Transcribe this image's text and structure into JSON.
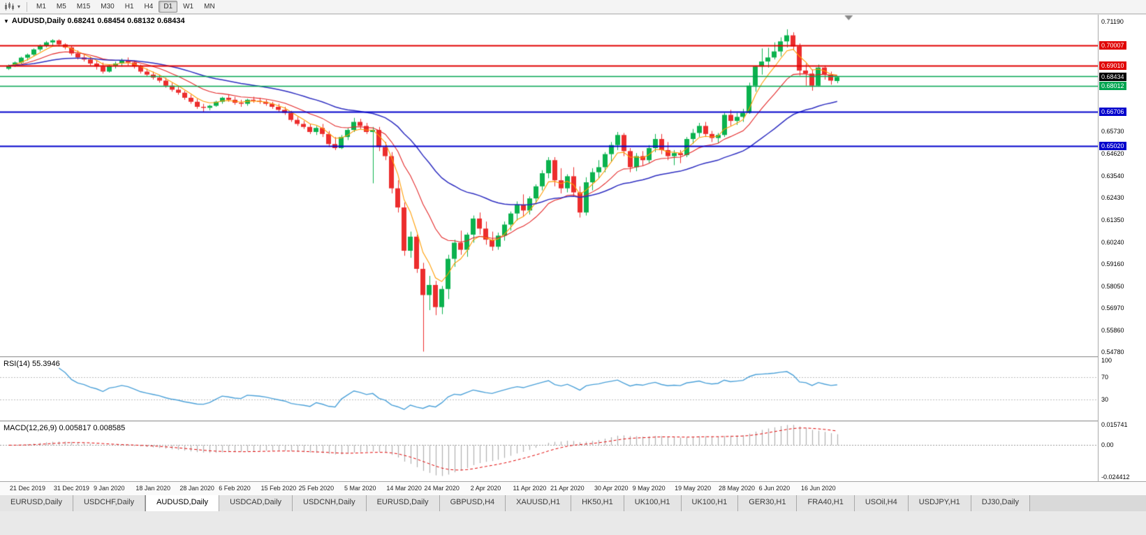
{
  "colors": {
    "up_candle": "#0bb24e",
    "down_candle": "#ec2d2d",
    "ma_fast": "#ff9d00",
    "ma_mid": "#e32525",
    "ma_slow": "#2d2dc0",
    "rsi_line": "#4aa0d8",
    "macd_histogram": "#b0b0b0",
    "macd_signal": "#e00000",
    "bid_badge_bg": "#000000"
  },
  "toolbar": {
    "timeframes": [
      "M1",
      "M5",
      "M15",
      "M30",
      "H1",
      "H4",
      "D1",
      "W1",
      "MN"
    ],
    "active_timeframe": "D1",
    "caret_icon": "▾"
  },
  "chart": {
    "title": "AUDUSD,Daily 0.68241 0.68454 0.68132 0.68434",
    "symbol_caret": "▼"
  },
  "price_axis": {
    "plain_labels": [
      "0.71190",
      "0.65730",
      "0.64620",
      "0.63540",
      "0.62430",
      "0.61350",
      "0.60240",
      "0.59160",
      "0.58050",
      "0.56970",
      "0.55860",
      "0.54780"
    ],
    "bid_badge": {
      "value": 0.68434,
      "label": "0.68434"
    }
  },
  "indicators": {
    "rsi": {
      "label": "RSI(14) 55.3946",
      "period": 14,
      "levels": [
        70,
        30
      ],
      "axis_labels": [
        "100",
        "70",
        "30"
      ]
    },
    "macd": {
      "label": "MACD(12,26,9) 0.005817 0.008585",
      "fast": 12,
      "slow": 26,
      "signal": 9,
      "axis_labels": [
        "0.015741",
        "0.00",
        "-0.024412"
      ]
    }
  },
  "tabs": {
    "active_index": 2,
    "items": [
      "EURUSD,Daily",
      "USDCHF,Daily",
      "AUDUSD,Daily",
      "USDCAD,Daily",
      "USDCNH,Daily",
      "EURUSD,Daily",
      "GBPUSD,H4",
      "XAUUSD,H1",
      "HK50,H1",
      "UK100,H1",
      "UK100,H1",
      "GER30,H1",
      "FRA40,H1",
      "USOil,H4",
      "USDJPY,H1",
      "DJ30,Daily"
    ]
  },
  "chart_data": {
    "type": "candlestick",
    "title": "AUDUSD,Daily",
    "ohlc_current": {
      "open": 0.68241,
      "high": 0.68454,
      "low": 0.68132,
      "close": 0.68434
    },
    "ylim": [
      0.5478,
      0.7119
    ],
    "shift_ratio": 0.768,
    "x_labels": [
      "21 Dec 2019",
      "31 Dec 2019",
      "9 Jan 2020",
      "18 Jan 2020",
      "28 Jan 2020",
      "6 Feb 2020",
      "15 Feb 2020",
      "25 Feb 2020",
      "5 Mar 2020",
      "14 Mar 2020",
      "24 Mar 2020",
      "2 Apr 2020",
      "11 Apr 2020",
      "21 Apr 2020",
      "30 Apr 2020",
      "9 May 2020",
      "19 May 2020",
      "28 May 2020",
      "6 Jun 2020",
      "16 Jun 2020"
    ],
    "hlines": [
      {
        "value": 0.70007,
        "label": "0.70007",
        "color": "#e00000",
        "width": 2
      },
      {
        "value": 0.6901,
        "label": "0.69010",
        "color": "#e00000",
        "width": 2
      },
      {
        "value": 0.6849,
        "label": "",
        "color": "#00a550",
        "width": 1.5
      },
      {
        "value": 0.68012,
        "label": "0.68012",
        "color": "#00a550",
        "width": 1.5
      },
      {
        "value": 0.66706,
        "label": "0.66706",
        "color": "#0000cc",
        "width": 2
      },
      {
        "value": 0.6502,
        "label": "0.65020",
        "color": "#0000cc",
        "width": 2
      }
    ],
    "moving_averages": [
      {
        "type": "ema",
        "period": 5,
        "color": "#ff9d00"
      },
      {
        "type": "ema",
        "period": 13,
        "color": "#e32525"
      },
      {
        "type": "ema",
        "period": 34,
        "color": "#2d2dc0"
      }
    ],
    "candles": [
      [
        0.6885,
        0.6906,
        0.6879,
        0.6901
      ],
      [
        0.6901,
        0.6921,
        0.6894,
        0.6916
      ],
      [
        0.6916,
        0.6945,
        0.691,
        0.694
      ],
      [
        0.694,
        0.6961,
        0.6926,
        0.6955
      ],
      [
        0.6955,
        0.6986,
        0.6949,
        0.6981
      ],
      [
        0.6981,
        0.7006,
        0.6971,
        0.7001
      ],
      [
        0.7001,
        0.7023,
        0.6991,
        0.7016
      ],
      [
        0.7016,
        0.7032,
        0.7001,
        0.7026
      ],
      [
        0.7026,
        0.7031,
        0.6996,
        0.7006
      ],
      [
        0.7006,
        0.7012,
        0.6981,
        0.6991
      ],
      [
        0.6991,
        0.7001,
        0.6951,
        0.6961
      ],
      [
        0.6961,
        0.6976,
        0.6931,
        0.6941
      ],
      [
        0.6941,
        0.6956,
        0.6921,
        0.6931
      ],
      [
        0.6931,
        0.6946,
        0.6901,
        0.6911
      ],
      [
        0.6911,
        0.6926,
        0.6881,
        0.6896
      ],
      [
        0.6896,
        0.6916,
        0.6861,
        0.6871
      ],
      [
        0.6871,
        0.6906,
        0.6866,
        0.6901
      ],
      [
        0.6901,
        0.6921,
        0.6886,
        0.6911
      ],
      [
        0.6911,
        0.6936,
        0.6896,
        0.6926
      ],
      [
        0.6926,
        0.6941,
        0.6901,
        0.6916
      ],
      [
        0.6916,
        0.6926,
        0.6886,
        0.6896
      ],
      [
        0.6896,
        0.6906,
        0.6861,
        0.6871
      ],
      [
        0.6871,
        0.6886,
        0.6846,
        0.6856
      ],
      [
        0.6856,
        0.6871,
        0.6831,
        0.6841
      ],
      [
        0.6841,
        0.6856,
        0.6816,
        0.6826
      ],
      [
        0.6826,
        0.6841,
        0.6791,
        0.6801
      ],
      [
        0.6801,
        0.6816,
        0.6771,
        0.6781
      ],
      [
        0.6781,
        0.6796,
        0.6756,
        0.6766
      ],
      [
        0.6766,
        0.6776,
        0.6731,
        0.6741
      ],
      [
        0.6741,
        0.6756,
        0.6711,
        0.6721
      ],
      [
        0.6721,
        0.6736,
        0.6686,
        0.6696
      ],
      [
        0.6696,
        0.6711,
        0.6671,
        0.6691
      ],
      [
        0.6691,
        0.6706,
        0.6679,
        0.6701
      ],
      [
        0.6701,
        0.6726,
        0.6696,
        0.6721
      ],
      [
        0.6721,
        0.6746,
        0.6711,
        0.6741
      ],
      [
        0.6741,
        0.6756,
        0.6721,
        0.6731
      ],
      [
        0.6731,
        0.6746,
        0.6706,
        0.6716
      ],
      [
        0.6716,
        0.6731,
        0.6696,
        0.6711
      ],
      [
        0.6711,
        0.6736,
        0.6701,
        0.6731
      ],
      [
        0.6731,
        0.6746,
        0.6716,
        0.6726
      ],
      [
        0.6726,
        0.6741,
        0.6711,
        0.6721
      ],
      [
        0.6721,
        0.6731,
        0.6701,
        0.6711
      ],
      [
        0.6711,
        0.6721,
        0.6686,
        0.6696
      ],
      [
        0.6696,
        0.6711,
        0.6671,
        0.6681
      ],
      [
        0.6681,
        0.6696,
        0.6656,
        0.6666
      ],
      [
        0.6666,
        0.6676,
        0.6621,
        0.6631
      ],
      [
        0.6631,
        0.6646,
        0.6601,
        0.6611
      ],
      [
        0.6611,
        0.6626,
        0.6586,
        0.6596
      ],
      [
        0.6596,
        0.6611,
        0.6561,
        0.6571
      ],
      [
        0.6571,
        0.6601,
        0.6556,
        0.6591
      ],
      [
        0.6591,
        0.6611,
        0.6546,
        0.6561
      ],
      [
        0.6561,
        0.6576,
        0.6496,
        0.6511
      ],
      [
        0.6511,
        0.6546,
        0.6481,
        0.6491
      ],
      [
        0.6491,
        0.6556,
        0.6486,
        0.6546
      ],
      [
        0.6546,
        0.6591,
        0.6531,
        0.6581
      ],
      [
        0.6581,
        0.6641,
        0.6571,
        0.6621
      ],
      [
        0.6621,
        0.6636,
        0.6586,
        0.6601
      ],
      [
        0.6601,
        0.6616,
        0.6561,
        0.6571
      ],
      [
        0.6571,
        0.6596,
        0.6316,
        0.6581
      ],
      [
        0.6581,
        0.6596,
        0.6476,
        0.6496
      ],
      [
        0.6496,
        0.6521,
        0.6431,
        0.6451
      ],
      [
        0.6451,
        0.6471,
        0.6266,
        0.6291
      ],
      [
        0.6291,
        0.6331,
        0.6171,
        0.6196
      ],
      [
        0.6196,
        0.6221,
        0.5956,
        0.5981
      ],
      [
        0.5981,
        0.6076,
        0.5946,
        0.6051
      ],
      [
        0.6051,
        0.6061,
        0.5871,
        0.5891
      ],
      [
        0.5891,
        0.5921,
        0.548,
        0.5761
      ],
      [
        0.5761,
        0.5856,
        0.5686,
        0.5811
      ],
      [
        0.5811,
        0.5831,
        0.5661,
        0.5701
      ],
      [
        0.5701,
        0.5806,
        0.5666,
        0.5791
      ],
      [
        0.5791,
        0.5961,
        0.5741,
        0.5941
      ],
      [
        0.5941,
        0.6036,
        0.5901,
        0.6021
      ],
      [
        0.6021,
        0.6081,
        0.5961,
        0.5986
      ],
      [
        0.5986,
        0.6071,
        0.5951,
        0.6061
      ],
      [
        0.6061,
        0.6156,
        0.6021,
        0.6141
      ],
      [
        0.6141,
        0.6171,
        0.6061,
        0.6091
      ],
      [
        0.6091,
        0.6126,
        0.6011,
        0.6036
      ],
      [
        0.6036,
        0.6076,
        0.5981,
        0.6001
      ],
      [
        0.6001,
        0.6071,
        0.5986,
        0.6056
      ],
      [
        0.6056,
        0.6126,
        0.6031,
        0.6111
      ],
      [
        0.6111,
        0.6176,
        0.6081,
        0.6166
      ],
      [
        0.6166,
        0.6226,
        0.6131,
        0.6211
      ],
      [
        0.6211,
        0.6261,
        0.6151,
        0.6181
      ],
      [
        0.6181,
        0.6251,
        0.6161,
        0.6241
      ],
      [
        0.6241,
        0.6311,
        0.6211,
        0.6301
      ],
      [
        0.6301,
        0.6381,
        0.6281,
        0.6366
      ],
      [
        0.6366,
        0.6446,
        0.6341,
        0.6431
      ],
      [
        0.6431,
        0.6446,
        0.6301,
        0.6331
      ],
      [
        0.6331,
        0.6391,
        0.6266,
        0.6291
      ],
      [
        0.6291,
        0.6361,
        0.6271,
        0.6351
      ],
      [
        0.6351,
        0.6396,
        0.6251,
        0.6271
      ],
      [
        0.6271,
        0.6301,
        0.6146,
        0.6171
      ],
      [
        0.6171,
        0.6346,
        0.6156,
        0.6321
      ],
      [
        0.6321,
        0.6391,
        0.6281,
        0.6371
      ],
      [
        0.6371,
        0.6431,
        0.6341,
        0.6396
      ],
      [
        0.6396,
        0.6471,
        0.6371,
        0.6461
      ],
      [
        0.6461,
        0.6521,
        0.6421,
        0.6506
      ],
      [
        0.6506,
        0.6571,
        0.6481,
        0.6556
      ],
      [
        0.6556,
        0.6566,
        0.6451,
        0.6476
      ],
      [
        0.6476,
        0.6491,
        0.6371,
        0.6396
      ],
      [
        0.6396,
        0.6466,
        0.6376,
        0.6451
      ],
      [
        0.6451,
        0.6476,
        0.6401,
        0.6431
      ],
      [
        0.6431,
        0.6506,
        0.6416,
        0.6491
      ],
      [
        0.6491,
        0.6561,
        0.6471,
        0.6536
      ],
      [
        0.6536,
        0.6561,
        0.6461,
        0.6481
      ],
      [
        0.6481,
        0.6521,
        0.6431,
        0.6451
      ],
      [
        0.6451,
        0.6481,
        0.6406,
        0.6466
      ],
      [
        0.6466,
        0.6481,
        0.6416,
        0.6456
      ],
      [
        0.6456,
        0.6546,
        0.6446,
        0.6536
      ],
      [
        0.6536,
        0.6586,
        0.6511,
        0.6566
      ],
      [
        0.6566,
        0.6616,
        0.6546,
        0.6601
      ],
      [
        0.6601,
        0.6621,
        0.6546,
        0.6561
      ],
      [
        0.6561,
        0.6576,
        0.6521,
        0.6541
      ],
      [
        0.6541,
        0.6566,
        0.6516,
        0.6556
      ],
      [
        0.6556,
        0.6666,
        0.6546,
        0.6656
      ],
      [
        0.6656,
        0.6681,
        0.6601,
        0.6626
      ],
      [
        0.6626,
        0.6666,
        0.6606,
        0.6646
      ],
      [
        0.6646,
        0.6686,
        0.6621,
        0.6666
      ],
      [
        0.6666,
        0.6816,
        0.6661,
        0.6801
      ],
      [
        0.6801,
        0.6901,
        0.6771,
        0.6896
      ],
      [
        0.6896,
        0.6986,
        0.6856,
        0.6921
      ],
      [
        0.6921,
        0.6989,
        0.6891,
        0.6941
      ],
      [
        0.6941,
        0.7016,
        0.6931,
        0.6971
      ],
      [
        0.6971,
        0.7041,
        0.6946,
        0.7021
      ],
      [
        0.7021,
        0.7081,
        0.6991,
        0.7051
      ],
      [
        0.7051,
        0.7066,
        0.6976,
        0.6996
      ],
      [
        0.6996,
        0.7011,
        0.6851,
        0.6876
      ],
      [
        0.6876,
        0.6911,
        0.6801,
        0.6861
      ],
      [
        0.6861,
        0.6881,
        0.6776,
        0.6801
      ],
      [
        0.6801,
        0.6906,
        0.6796,
        0.6891
      ],
      [
        0.6891,
        0.6901,
        0.6831,
        0.6856
      ],
      [
        0.6856,
        0.6871,
        0.6806,
        0.6826
      ],
      [
        0.68241,
        0.68454,
        0.68132,
        0.68434
      ]
    ]
  }
}
